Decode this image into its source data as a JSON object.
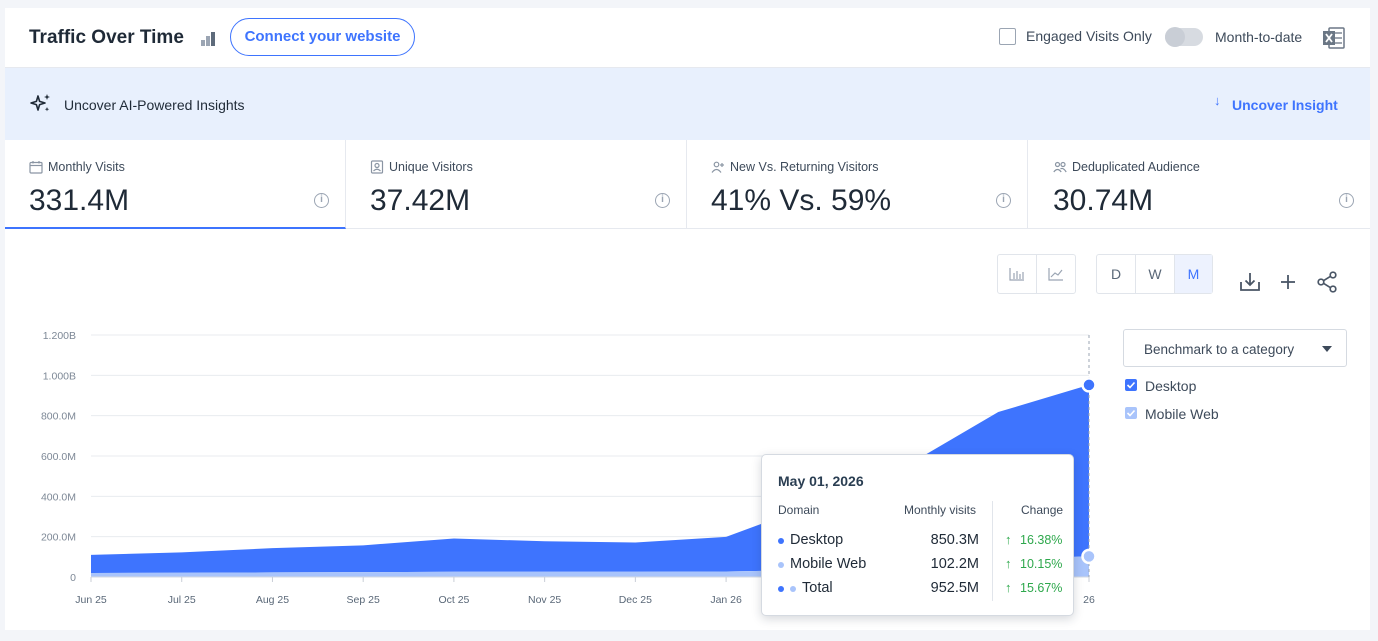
{
  "header": {
    "title": "Traffic Over Time",
    "connect_label": "Connect your website",
    "engaged_label": "Engaged Visits Only",
    "mtd_label": "Month-to-date"
  },
  "ai_bar": {
    "label": "Uncover AI-Powered Insights",
    "link_label": "Uncover Insight"
  },
  "metrics": [
    {
      "label": "Monthly Visits",
      "value": "331.4M",
      "icon": "calendar-icon"
    },
    {
      "label": "Unique Visitors",
      "value": "37.42M",
      "icon": "person-card-icon"
    },
    {
      "label": "New Vs. Returning Visitors",
      "value": "41% Vs. 59%",
      "icon": "add-user-icon"
    },
    {
      "label": "Deduplicated Audience",
      "value": "30.74M",
      "icon": "users-icon"
    }
  ],
  "toolbar": {
    "granularity": [
      "D",
      "W",
      "M"
    ],
    "selected": "M"
  },
  "benchmark": {
    "label": "Benchmark to a category"
  },
  "legend": [
    {
      "label": "Desktop",
      "color": "#3e74fe",
      "checked": true
    },
    {
      "label": "Mobile Web",
      "color": "#a9c4fb",
      "checked": true
    }
  ],
  "tooltip": {
    "date": "May 01, 2026",
    "col_domain": "Domain",
    "col_visits": "Monthly visits",
    "col_change": "Change",
    "rows": [
      {
        "name": "Desktop",
        "value": "850.3M",
        "change": "16.38%",
        "color": "#3e74fe"
      },
      {
        "name": "Mobile Web",
        "value": "102.2M",
        "change": "10.15%",
        "color": "#a9c4fb"
      },
      {
        "name": "Total",
        "value": "952.5M",
        "change": "15.67%",
        "color": "#3e74fe"
      }
    ]
  },
  "chart_data": {
    "type": "area",
    "x": [
      "Jun 25",
      "Jul 25",
      "Aug 25",
      "Sep 25",
      "Oct 25",
      "Nov 25",
      "Dec 25",
      "Jan 26",
      "Feb 26",
      "Mar 26",
      "Apr 26",
      "May 26"
    ],
    "tick_labels": [
      "Jun 25",
      "Jul 25",
      "Aug 25",
      "Sep 25",
      "Oct 25",
      "Nov 25",
      "Dec 25",
      "Jan 26",
      "",
      "",
      "",
      "26"
    ],
    "series": [
      {
        "name": "Desktop",
        "color": "#3e74fe",
        "values": [
          90,
          101,
          120,
          133,
          165,
          151,
          145,
          172,
          330,
          500,
          730,
          850.3
        ]
      },
      {
        "name": "Mobile Web",
        "color": "#a9c4fb",
        "values": [
          20,
          21,
          23,
          24,
          26,
          26,
          26,
          27,
          35,
          55,
          88,
          102.2
        ]
      }
    ],
    "stacked": true,
    "y_ticks": [
      "0",
      "200.0M",
      "400.0M",
      "600.0M",
      "800.0M",
      "1.000B",
      "1.200B"
    ],
    "ylim": [
      0,
      1200
    ],
    "unit": "M",
    "grid": true
  }
}
